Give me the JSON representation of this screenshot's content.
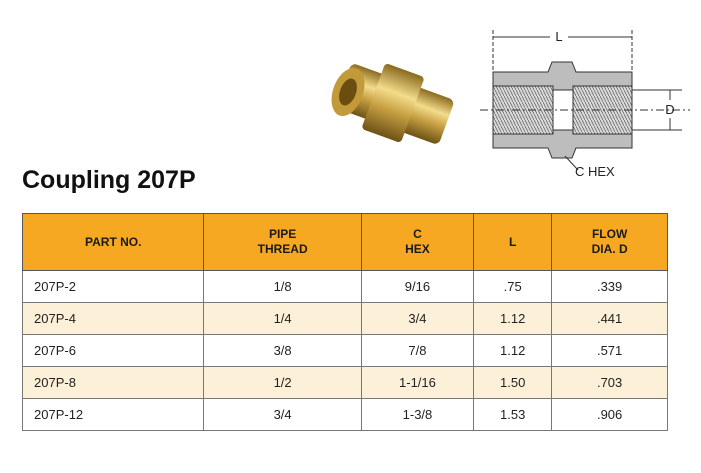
{
  "title": "Coupling 207P",
  "diagram": {
    "length_label": "L",
    "diameter_label": "D",
    "hex_label": "C HEX"
  },
  "table": {
    "headers": [
      "PART NO.",
      "PIPE\nTHREAD",
      "C\nHEX",
      "L",
      "FLOW\nDIA. D"
    ],
    "rows": [
      [
        "207P-2",
        "1/8",
        "9/16",
        ".75",
        ".339"
      ],
      [
        "207P-4",
        "1/4",
        "3/4",
        "1.12",
        ".441"
      ],
      [
        "207P-6",
        "3/8",
        "7/8",
        "1.12",
        ".571"
      ],
      [
        "207P-8",
        "1/2",
        "1-1/16",
        "1.50",
        ".703"
      ],
      [
        "207P-12",
        "3/4",
        "1-3/8",
        "1.53",
        ".906"
      ]
    ]
  }
}
